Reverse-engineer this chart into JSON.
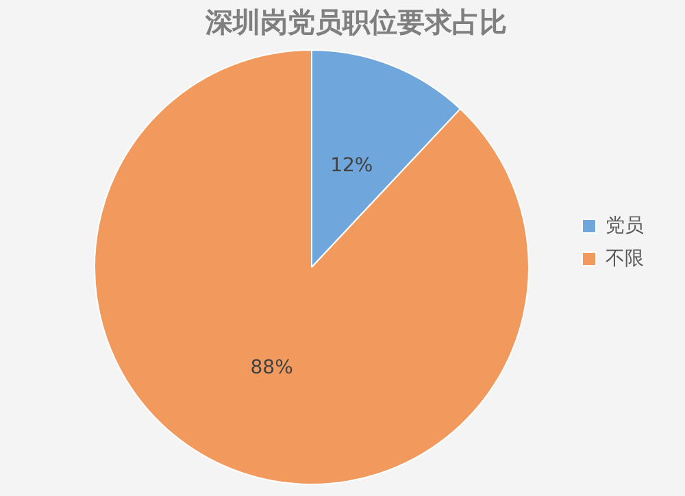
{
  "chart_data": {
    "type": "pie",
    "title": "深圳岗党员职位要求占比",
    "categories": [
      "党员",
      "不限"
    ],
    "values": [
      12,
      88
    ],
    "colors": [
      "#6fa6dc",
      "#f29a5e"
    ],
    "value_labels": [
      "12%",
      "88%"
    ],
    "legend": "right"
  }
}
